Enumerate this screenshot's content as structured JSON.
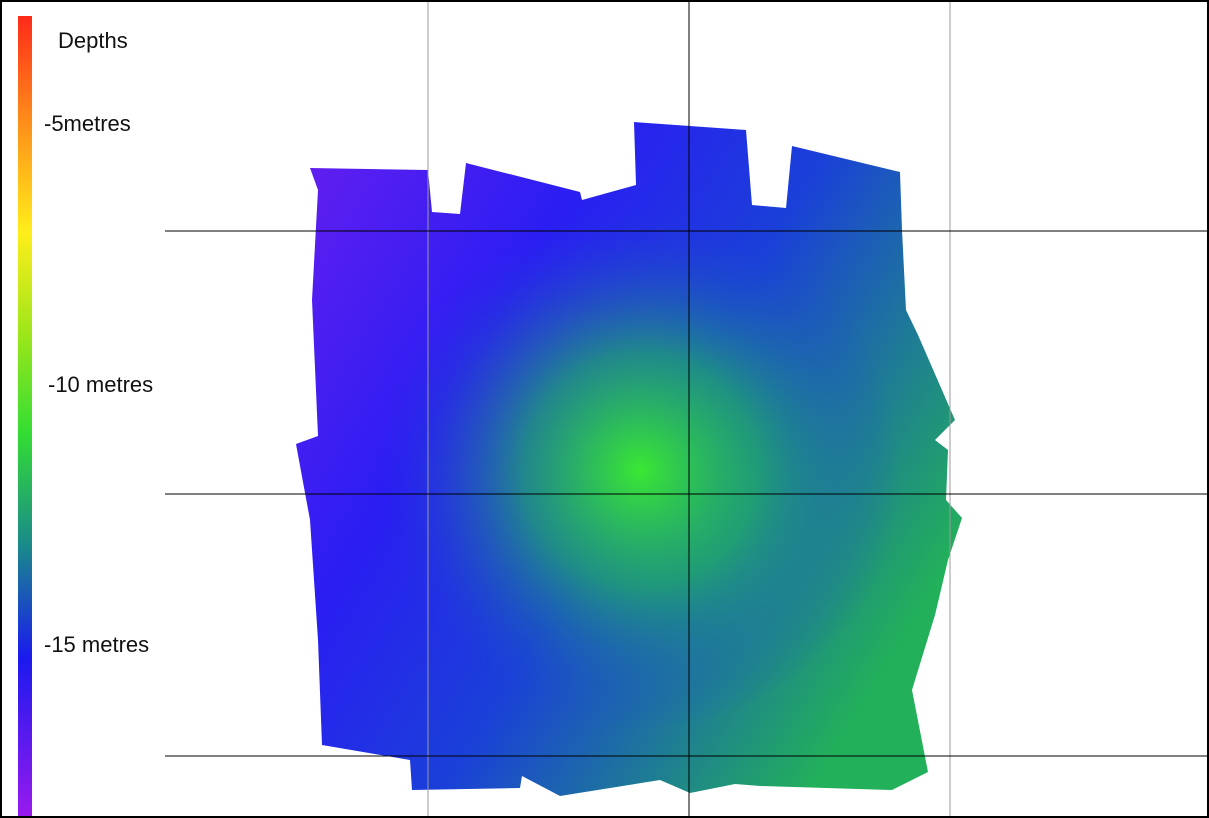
{
  "legend": {
    "title": "Depths",
    "labels": [
      "-5metres",
      "-10 metres",
      "-15 metres"
    ]
  }
}
